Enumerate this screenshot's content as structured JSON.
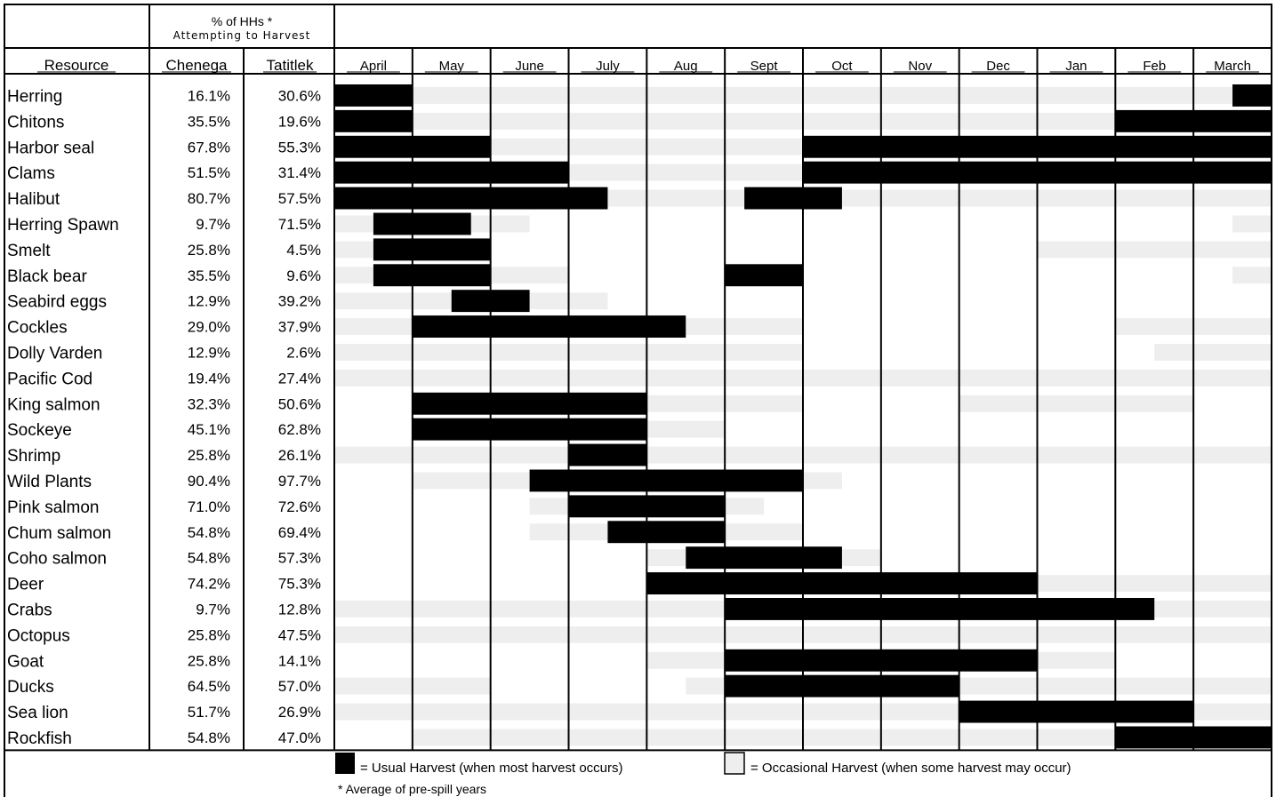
{
  "header": {
    "pct_title": "% of HHs *",
    "pct_subtitle": "Attempting to Harvest",
    "resource_label": "Resource",
    "community_1": "Chenega",
    "community_2": "Tatitlek"
  },
  "legend": {
    "usual": "= Usual Harvest (when most harvest occurs)",
    "occasional": "= Occasional Harvest (when some harvest may occur)",
    "note": "* Average of pre-spill years"
  },
  "colors": {
    "usual": "#000000",
    "occasional": "#eeeeee",
    "grid": "#000000"
  },
  "chart_data": {
    "type": "table",
    "months": [
      "April",
      "May",
      "June",
      "July",
      "Aug",
      "Sept",
      "Oct",
      "Nov",
      "Dec",
      "Jan",
      "Feb",
      "March"
    ],
    "unit_note": "Bars are given in month positions from the start of April (0 = start of April, 12 = end of March).",
    "rows": [
      {
        "resource": "Herring",
        "chenega": "16.1%",
        "tatitlek": "30.6%",
        "usual": [
          [
            0,
            1
          ],
          [
            11.5,
            12
          ]
        ],
        "occasional": [
          [
            1,
            11.5
          ]
        ]
      },
      {
        "resource": "Chitons",
        "chenega": "35.5%",
        "tatitlek": "19.6%",
        "usual": [
          [
            0,
            1
          ],
          [
            10,
            12
          ]
        ],
        "occasional": [
          [
            1,
            10
          ]
        ]
      },
      {
        "resource": "Harbor seal",
        "chenega": "67.8%",
        "tatitlek": "55.3%",
        "usual": [
          [
            0,
            2
          ],
          [
            6,
            12
          ]
        ],
        "occasional": [
          [
            2,
            6
          ]
        ]
      },
      {
        "resource": "Clams",
        "chenega": "51.5%",
        "tatitlek": "31.4%",
        "usual": [
          [
            0,
            3
          ],
          [
            6,
            12
          ]
        ],
        "occasional": [
          [
            3,
            6
          ]
        ]
      },
      {
        "resource": "Halibut",
        "chenega": "80.7%",
        "tatitlek": "57.5%",
        "usual": [
          [
            0,
            3.5
          ],
          [
            5.25,
            6.5
          ]
        ],
        "occasional": [
          [
            3.5,
            5.25
          ],
          [
            6.5,
            12
          ]
        ]
      },
      {
        "resource": "Herring Spawn",
        "chenega": "9.7%",
        "tatitlek": "71.5%",
        "usual": [
          [
            0.5,
            1.75
          ]
        ],
        "occasional": [
          [
            0,
            0.5
          ],
          [
            1.75,
            2.5
          ],
          [
            11.5,
            12
          ]
        ]
      },
      {
        "resource": "Smelt",
        "chenega": "25.8%",
        "tatitlek": "4.5%",
        "usual": [
          [
            0.5,
            2
          ]
        ],
        "occasional": [
          [
            0,
            0.5
          ],
          [
            9,
            12
          ]
        ]
      },
      {
        "resource": "Black bear",
        "chenega": "35.5%",
        "tatitlek": "9.6%",
        "usual": [
          [
            0.5,
            2
          ],
          [
            5,
            6
          ]
        ],
        "occasional": [
          [
            0,
            0.5
          ],
          [
            2,
            3
          ],
          [
            11.5,
            12
          ]
        ]
      },
      {
        "resource": "Seabird eggs",
        "chenega": "12.9%",
        "tatitlek": "39.2%",
        "usual": [
          [
            1.5,
            2.5
          ]
        ],
        "occasional": [
          [
            0,
            1.5
          ],
          [
            2.5,
            3.5
          ]
        ]
      },
      {
        "resource": "Cockles",
        "chenega": "29.0%",
        "tatitlek": "37.9%",
        "usual": [
          [
            1,
            4.5
          ]
        ],
        "occasional": [
          [
            0,
            1
          ],
          [
            4.5,
            6
          ],
          [
            10,
            12
          ]
        ]
      },
      {
        "resource": "Dolly Varden",
        "chenega": "12.9%",
        "tatitlek": "2.6%",
        "usual": [],
        "occasional": [
          [
            0,
            6
          ],
          [
            10.5,
            12
          ]
        ]
      },
      {
        "resource": "Pacific Cod",
        "chenega": "19.4%",
        "tatitlek": "27.4%",
        "usual": [],
        "occasional": [
          [
            0,
            12
          ]
        ]
      },
      {
        "resource": "King salmon",
        "chenega": "32.3%",
        "tatitlek": "50.6%",
        "usual": [
          [
            1,
            4
          ]
        ],
        "occasional": [
          [
            4,
            6
          ],
          [
            8,
            11
          ]
        ]
      },
      {
        "resource": "Sockeye",
        "chenega": "45.1%",
        "tatitlek": "62.8%",
        "usual": [
          [
            1,
            4
          ]
        ],
        "occasional": [
          [
            4,
            5
          ]
        ]
      },
      {
        "resource": "Shrimp",
        "chenega": "25.8%",
        "tatitlek": "26.1%",
        "usual": [
          [
            3,
            4
          ]
        ],
        "occasional": [
          [
            0,
            3
          ],
          [
            4,
            12
          ]
        ]
      },
      {
        "resource": "Wild Plants",
        "chenega": "90.4%",
        "tatitlek": "97.7%",
        "usual": [
          [
            2.5,
            6
          ]
        ],
        "occasional": [
          [
            1,
            2.5
          ],
          [
            6,
            6.5
          ]
        ]
      },
      {
        "resource": "Pink salmon",
        "chenega": "71.0%",
        "tatitlek": "72.6%",
        "usual": [
          [
            3,
            5
          ]
        ],
        "occasional": [
          [
            2.5,
            3
          ],
          [
            5,
            5.5
          ]
        ]
      },
      {
        "resource": "Chum salmon",
        "chenega": "54.8%",
        "tatitlek": "69.4%",
        "usual": [
          [
            3.5,
            5
          ]
        ],
        "occasional": [
          [
            2.5,
            3.5
          ],
          [
            5,
            6
          ]
        ]
      },
      {
        "resource": "Coho salmon",
        "chenega": "54.8%",
        "tatitlek": "57.3%",
        "usual": [
          [
            4.5,
            6.5
          ]
        ],
        "occasional": [
          [
            4,
            4.5
          ],
          [
            6.5,
            7
          ]
        ]
      },
      {
        "resource": "Deer",
        "chenega": "74.2%",
        "tatitlek": "75.3%",
        "usual": [
          [
            4,
            9
          ]
        ],
        "occasional": [
          [
            9,
            12
          ]
        ]
      },
      {
        "resource": "Crabs",
        "chenega": "9.7%",
        "tatitlek": "12.8%",
        "usual": [
          [
            5,
            10.5
          ]
        ],
        "occasional": [
          [
            0,
            5
          ],
          [
            10.5,
            12
          ]
        ]
      },
      {
        "resource": "Octopus",
        "chenega": "25.8%",
        "tatitlek": "47.5%",
        "usual": [],
        "occasional": [
          [
            0,
            12
          ]
        ]
      },
      {
        "resource": "Goat",
        "chenega": "25.8%",
        "tatitlek": "14.1%",
        "usual": [
          [
            5,
            9
          ]
        ],
        "occasional": [
          [
            4,
            5
          ],
          [
            9,
            10
          ]
        ]
      },
      {
        "resource": "Ducks",
        "chenega": "64.5%",
        "tatitlek": "57.0%",
        "usual": [
          [
            5,
            8
          ]
        ],
        "occasional": [
          [
            0,
            2
          ],
          [
            4.5,
            5
          ],
          [
            8,
            12
          ]
        ]
      },
      {
        "resource": "Sea lion",
        "chenega": "51.7%",
        "tatitlek": "26.9%",
        "usual": [
          [
            8,
            11
          ]
        ],
        "occasional": [
          [
            0,
            8
          ],
          [
            11,
            12
          ]
        ]
      },
      {
        "resource": "Rockfish",
        "chenega": "54.8%",
        "tatitlek": "47.0%",
        "usual": [
          [
            10,
            12
          ]
        ],
        "occasional": [
          [
            1,
            10
          ]
        ]
      }
    ]
  }
}
